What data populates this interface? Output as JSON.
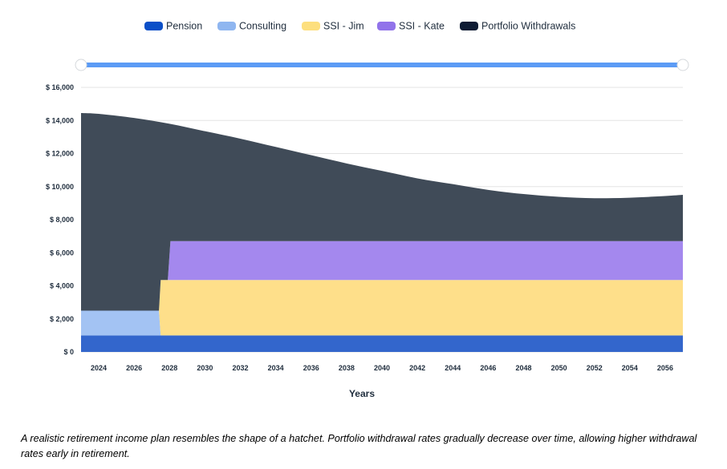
{
  "chart_data": {
    "type": "area",
    "stacked": true,
    "xlabel": "Years",
    "ylabel": "",
    "ylim": [
      0,
      16000
    ],
    "y_ticks": [
      0,
      2000,
      4000,
      6000,
      8000,
      10000,
      12000,
      14000,
      16000
    ],
    "y_tick_labels": [
      "$ 0",
      "$ 2,000",
      "$ 4,000",
      "$ 6,000",
      "$ 8,000",
      "$ 10,000",
      "$ 12,000",
      "$ 14,000",
      "$ 16,000"
    ],
    "x_ticks": [
      2024,
      2026,
      2028,
      2030,
      2032,
      2034,
      2036,
      2038,
      2040,
      2042,
      2044,
      2046,
      2048,
      2050,
      2052,
      2054,
      2056
    ],
    "x_tick_labels": [
      "2024",
      "2026",
      "2028",
      "2030",
      "2032",
      "2034",
      "2036",
      "2038",
      "2040",
      "2042",
      "2044",
      "2046",
      "2048",
      "2050",
      "2052",
      "2054",
      "2056"
    ],
    "xlim": [
      2023,
      2057
    ],
    "legend_position": "top-center",
    "series": [
      {
        "name": "Pension",
        "color": "#3366cc",
        "legend_color": "#0b4fc8",
        "points": [
          [
            2023,
            1000
          ],
          [
            2057,
            1000
          ]
        ]
      },
      {
        "name": "Consulting",
        "color": "#a3c3f3",
        "legend_color": "#8fb6f0",
        "points": [
          [
            2023,
            1500
          ],
          [
            2027.4,
            1500
          ],
          [
            2027.5,
            0
          ],
          [
            2057,
            0
          ]
        ]
      },
      {
        "name": "SSI - Jim",
        "color": "#fedf8a",
        "legend_color": "#fddf7e",
        "points": [
          [
            2023,
            0
          ],
          [
            2027.4,
            0
          ],
          [
            2027.5,
            3350
          ],
          [
            2057,
            3350
          ]
        ]
      },
      {
        "name": "SSI - Kate",
        "color": "#a488ee",
        "legend_color": "#9173ea",
        "points": [
          [
            2023,
            0
          ],
          [
            2027.9,
            0
          ],
          [
            2028.05,
            2350
          ],
          [
            2057,
            2350
          ]
        ]
      },
      {
        "name": "Portfolio Withdrawals",
        "color": "#404b58",
        "legend_color": "#0e1c34",
        "total_points": [
          [
            2023,
            14450
          ],
          [
            2024,
            14400
          ],
          [
            2026,
            14150
          ],
          [
            2028,
            13800
          ],
          [
            2030,
            13350
          ],
          [
            2032,
            12900
          ],
          [
            2034,
            12400
          ],
          [
            2036,
            11900
          ],
          [
            2038,
            11400
          ],
          [
            2040,
            10950
          ],
          [
            2042,
            10500
          ],
          [
            2044,
            10150
          ],
          [
            2046,
            9800
          ],
          [
            2048,
            9550
          ],
          [
            2050,
            9380
          ],
          [
            2052,
            9300
          ],
          [
            2054,
            9330
          ],
          [
            2056,
            9430
          ],
          [
            2057,
            9500
          ]
        ]
      }
    ]
  },
  "range_slider": {
    "accent": "#5b9bf5",
    "handle_color": "#ffffff"
  },
  "caption": "A realistic retirement income plan resembles the shape of a hatchet. Portfolio withdrawal rates gradually decrease over time, allowing higher withdrawal rates early in retirement."
}
